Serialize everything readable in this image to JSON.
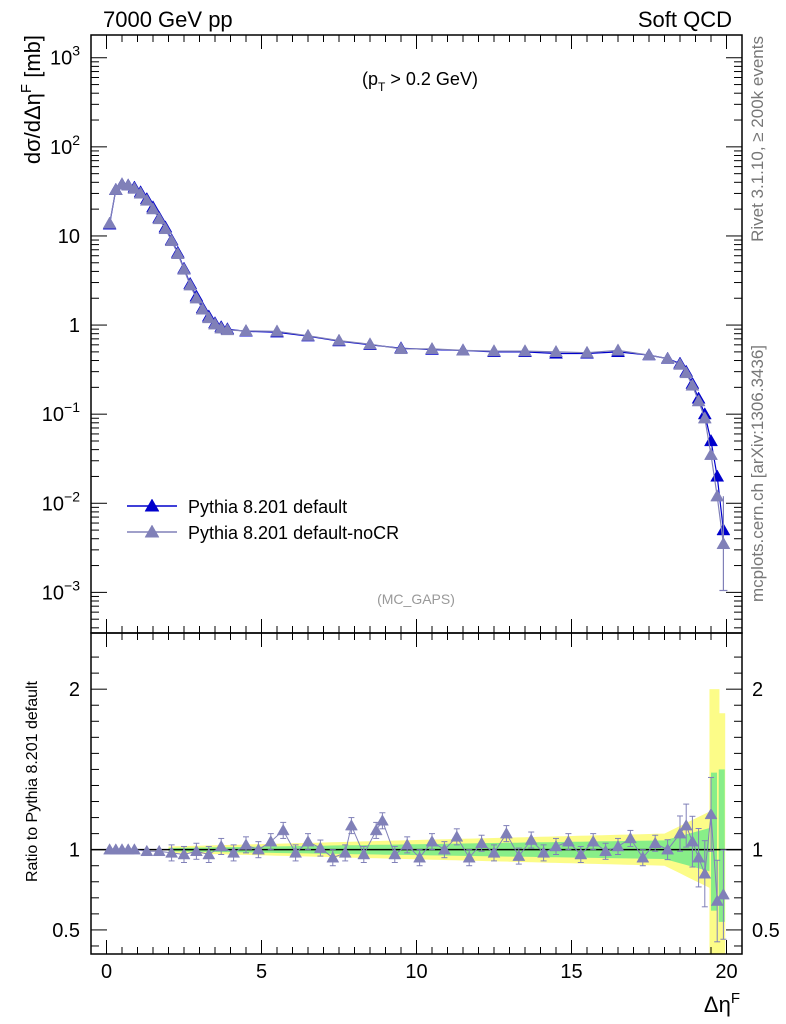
{
  "header": {
    "left_title": "7000 GeV pp",
    "right_title": "Soft QCD"
  },
  "side_labels": {
    "rivet": "Rivet 3.1.10, ≥ 200k events",
    "mcplots": "mcplots.cern.ch [arXiv:1306.3436]"
  },
  "chart_data": [
    {
      "type": "line",
      "panel": "main",
      "ylabel": "dσ/dΔη^F [mb]",
      "yscale": "log",
      "xlim": [
        -0.5,
        20.5
      ],
      "ylim": [
        0.00035,
        1800
      ],
      "annotation": "(p_T > 0.2 GeV)",
      "watermark": "(MC_GAPS)",
      "legend_position": "bottom-left",
      "xticks": [
        0,
        5,
        10,
        15,
        20
      ],
      "yticks": [
        {
          "value": 0.001,
          "base": "10",
          "exp": "−3"
        },
        {
          "value": 0.01,
          "base": "10",
          "exp": "−2"
        },
        {
          "value": 0.1,
          "base": "10",
          "exp": "−1"
        },
        {
          "value": 1,
          "base": "1",
          "exp": ""
        },
        {
          "value": 10,
          "base": "10",
          "exp": ""
        },
        {
          "value": 100,
          "base": "10",
          "exp": "2"
        },
        {
          "value": 1000,
          "base": "10",
          "exp": "3"
        }
      ],
      "series": [
        {
          "name": "Pythia 8.201 default",
          "color": "#0000cc",
          "x": [
            0.1,
            0.3,
            0.5,
            0.7,
            0.9,
            1.1,
            1.3,
            1.5,
            1.7,
            1.9,
            2.1,
            2.3,
            2.5,
            2.7,
            2.9,
            3.1,
            3.3,
            3.5,
            3.7,
            3.9,
            4.5,
            5.5,
            6.5,
            7.5,
            8.5,
            9.5,
            10.5,
            11.5,
            12.5,
            13.5,
            14.5,
            15.5,
            16.5,
            17.5,
            18.1,
            18.5,
            18.7,
            18.9,
            19.1,
            19.3,
            19.5,
            19.7,
            19.9
          ],
          "y": [
            13.5,
            33,
            38,
            37,
            35,
            31,
            26,
            21,
            16,
            12.5,
            9,
            6.5,
            4.3,
            2.9,
            2.1,
            1.55,
            1.25,
            1.05,
            0.95,
            0.9,
            0.85,
            0.83,
            0.75,
            0.66,
            0.6,
            0.55,
            0.53,
            0.52,
            0.5,
            0.5,
            0.48,
            0.48,
            0.5,
            0.46,
            0.42,
            0.37,
            0.3,
            0.22,
            0.15,
            0.1,
            0.05,
            0.02,
            0.005
          ]
        },
        {
          "name": "Pythia 8.201 default-noCR",
          "color": "#8080b8",
          "x": [
            0.1,
            0.3,
            0.5,
            0.7,
            0.9,
            1.1,
            1.3,
            1.5,
            1.7,
            1.9,
            2.1,
            2.3,
            2.5,
            2.7,
            2.9,
            3.1,
            3.3,
            3.5,
            3.7,
            3.9,
            4.5,
            5.5,
            6.5,
            7.5,
            8.5,
            9.5,
            10.5,
            11.5,
            12.5,
            13.5,
            14.5,
            15.5,
            16.5,
            17.5,
            18.1,
            18.5,
            18.7,
            18.9,
            19.1,
            19.3,
            19.5,
            19.7,
            19.9
          ],
          "y": [
            13.8,
            33,
            38,
            37,
            34,
            30,
            25,
            20,
            15.5,
            12,
            8.8,
            6.3,
            4.2,
            2.8,
            2.0,
            1.5,
            1.2,
            1.02,
            0.92,
            0.88,
            0.86,
            0.85,
            0.76,
            0.67,
            0.61,
            0.54,
            0.54,
            0.52,
            0.51,
            0.51,
            0.5,
            0.49,
            0.52,
            0.46,
            0.42,
            0.36,
            0.29,
            0.21,
            0.14,
            0.09,
            0.035,
            0.012,
            0.0035
          ]
        }
      ]
    },
    {
      "type": "line",
      "panel": "ratio",
      "xlabel": "Δη^F",
      "ylabel": "Ratio to Pythia 8.201 default",
      "xlim": [
        -0.5,
        20.5
      ],
      "ylim": [
        0.35,
        2.35
      ],
      "xticks": [
        0,
        5,
        10,
        15,
        20
      ],
      "yticks": [
        0.5,
        1,
        2
      ],
      "reference_line": 1,
      "band_colors": {
        "inner": "#88ee88",
        "outer": "#fcfc88"
      },
      "series": [
        {
          "name": "Pythia 8.201 default-noCR",
          "color": "#8080b8",
          "x": [
            0.1,
            0.3,
            0.5,
            0.7,
            0.9,
            1.3,
            1.7,
            2.1,
            2.5,
            2.9,
            3.3,
            3.7,
            4.1,
            4.5,
            4.9,
            5.3,
            5.7,
            6.1,
            6.5,
            6.9,
            7.3,
            7.7,
            7.9,
            8.3,
            8.7,
            8.9,
            9.3,
            9.7,
            10.1,
            10.5,
            10.9,
            11.3,
            11.7,
            12.1,
            12.5,
            12.9,
            13.3,
            13.7,
            14.1,
            14.5,
            14.9,
            15.3,
            15.7,
            16.1,
            16.5,
            16.9,
            17.3,
            17.7,
            18.1,
            18.5,
            18.7,
            18.9,
            19.1,
            19.3,
            19.5,
            19.7,
            19.9
          ],
          "y": [
            1.0,
            1.0,
            1.0,
            1.0,
            1.0,
            0.99,
            0.99,
            0.98,
            0.97,
            0.99,
            0.97,
            1.02,
            0.98,
            1.03,
            1.0,
            1.05,
            1.12,
            0.98,
            1.05,
            1.01,
            0.95,
            0.98,
            1.15,
            0.97,
            1.12,
            1.18,
            0.97,
            1.03,
            0.95,
            1.05,
            1.0,
            1.08,
            0.95,
            1.04,
            0.98,
            1.1,
            0.96,
            1.06,
            0.98,
            1.02,
            1.05,
            0.97,
            1.05,
            0.99,
            1.02,
            1.07,
            0.95,
            1.04,
            1.0,
            1.1,
            1.15,
            1.05,
            0.95,
            0.85,
            1.22,
            0.68,
            0.72
          ]
        }
      ]
    }
  ]
}
